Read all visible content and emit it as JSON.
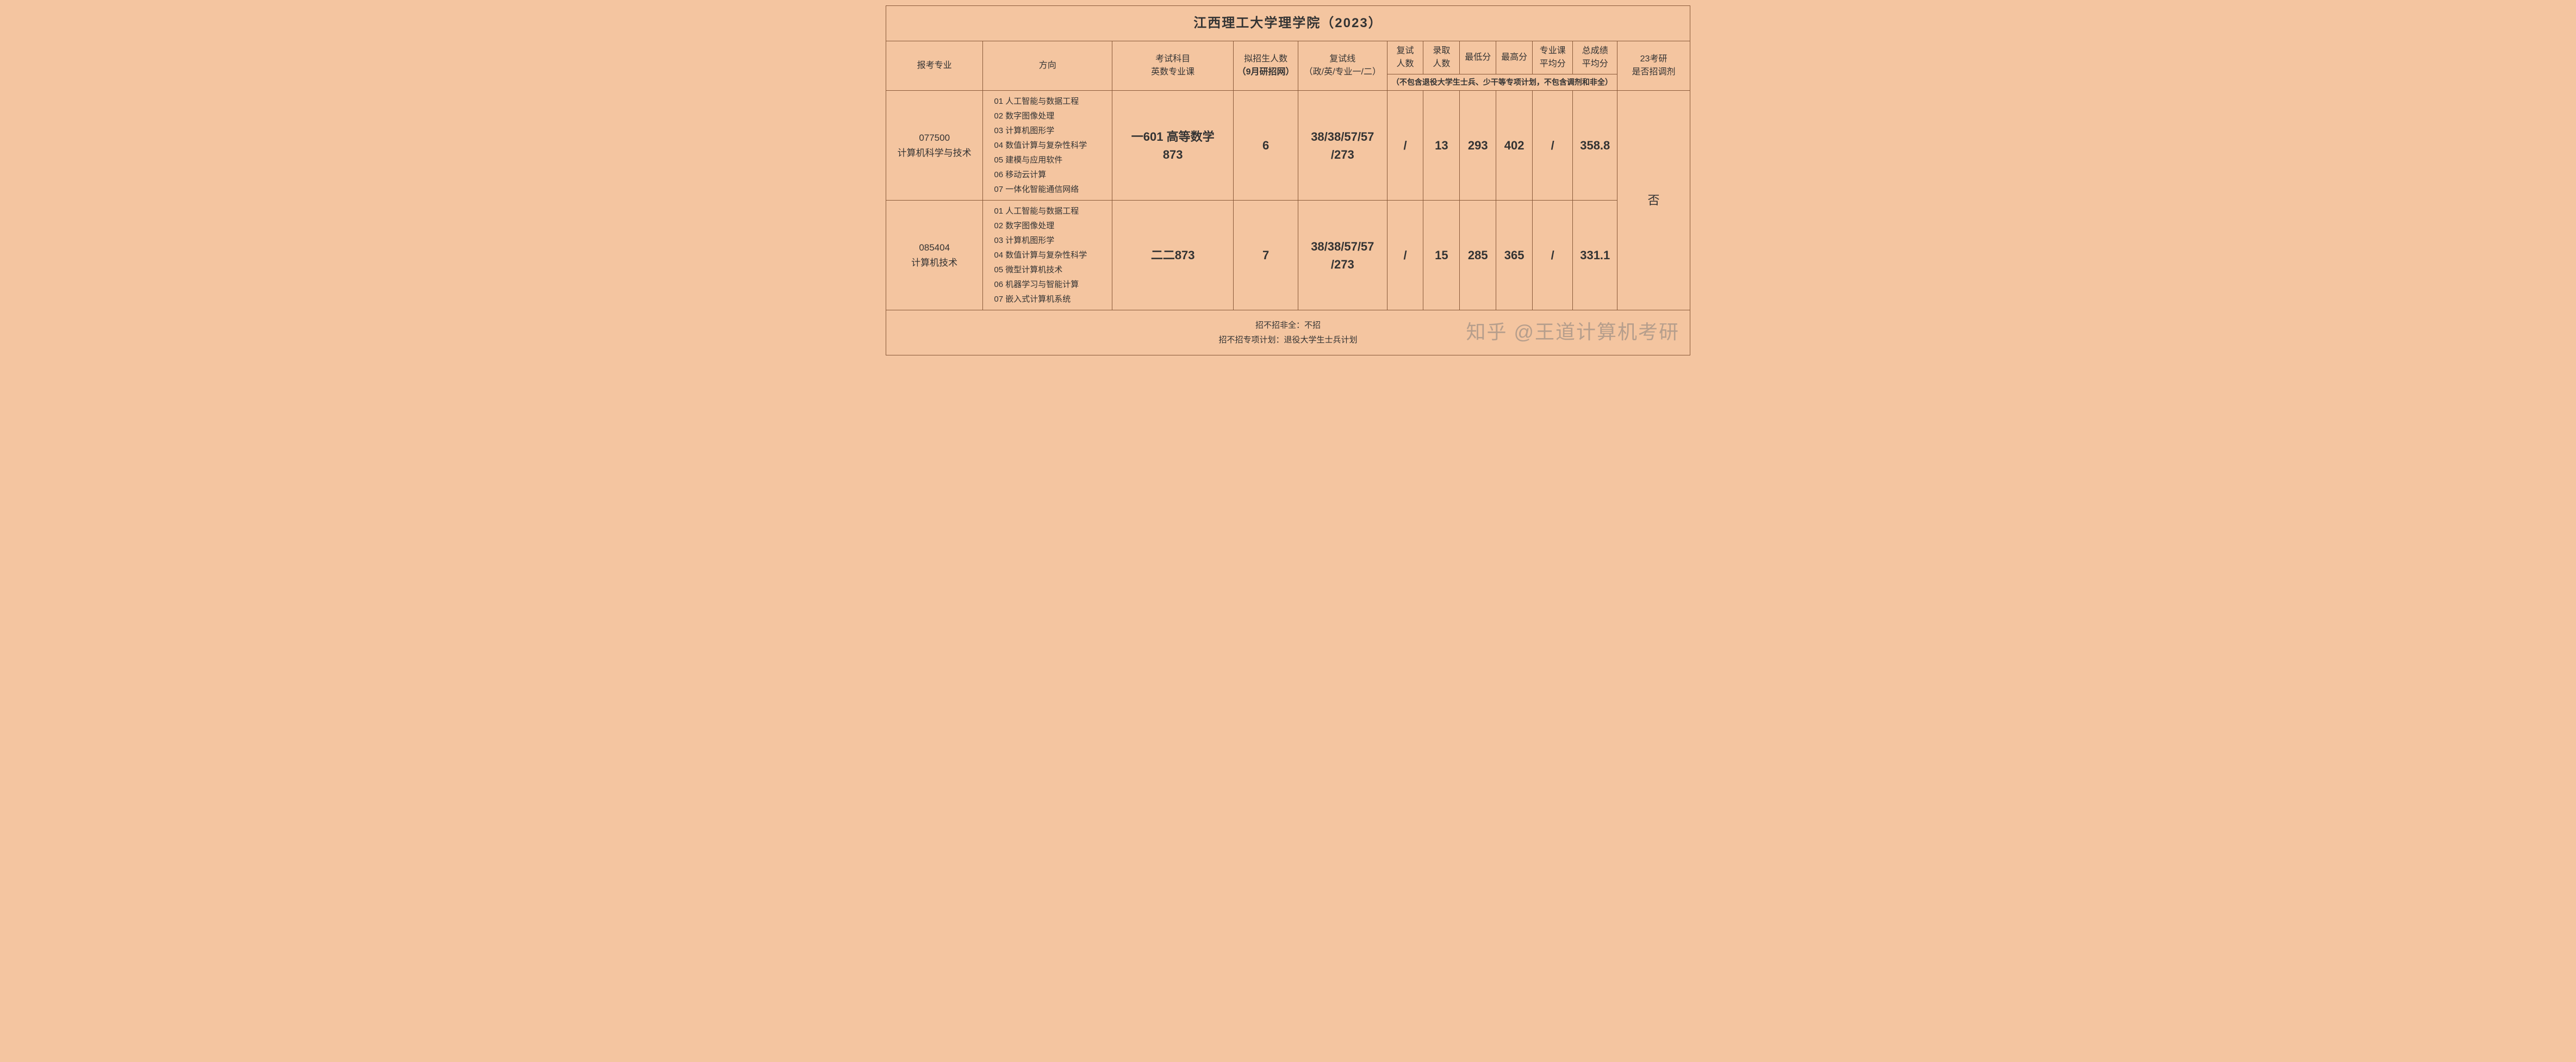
{
  "title": "江西理工大学理学院（2023）",
  "headers": {
    "major": "报考专业",
    "direction": "方向",
    "exam_subject_line1": "考试科目",
    "exam_subject_line2": "英数专业课",
    "enroll_plan_line1": "拟招生人数",
    "enroll_plan_line2": "（9月研招网）",
    "retest_line_line1": "复试线",
    "retest_line_line2": "（政/英/专业一/二）",
    "retest_count_line1": "复试",
    "retest_count_line2": "人数",
    "admit_count_line1": "录取",
    "admit_count_line2": "人数",
    "min_score": "最低分",
    "max_score": "最高分",
    "pro_avg_line1": "专业课",
    "pro_avg_line2": "平均分",
    "total_avg_line1": "总成绩",
    "total_avg_line2": "平均分",
    "adjust_line1": "23考研",
    "adjust_line2": "是否招调剂",
    "subheader_note": "（不包含退役大学生士兵、少干等专项计划，不包含调剂和非全）"
  },
  "rows": [
    {
      "major_code": "077500",
      "major_name": "计算机科学与技术",
      "directions": [
        "01 人工智能与数据工程",
        "02 数字图像处理",
        "03 计算机图形学",
        "04 数值计算与复杂性科学",
        "05 建模与应用软件",
        "06 移动云计算",
        "07 一体化智能通信网络"
      ],
      "exam_subject_line1": "一601 高等数学",
      "exam_subject_line2": "873",
      "enroll_plan": "6",
      "retest_line_line1": "38/38/57/57",
      "retest_line_line2": "/273",
      "retest_count": "/",
      "admit_count": "13",
      "min_score": "293",
      "max_score": "402",
      "pro_avg": "/",
      "total_avg": "358.8"
    },
    {
      "major_code": "085404",
      "major_name": "计算机技术",
      "directions": [
        "01 人工智能与数据工程",
        "02 数字图像处理",
        "03 计算机图形学",
        "04 数值计算与复杂性科学",
        "05 微型计算机技术",
        "06 机器学习与智能计算",
        "07 嵌入式计算机系统"
      ],
      "exam_subject_line1": "二二873",
      "exam_subject_line2": "",
      "enroll_plan": "7",
      "retest_line_line1": "38/38/57/57",
      "retest_line_line2": "/273",
      "retest_count": "/",
      "admit_count": "15",
      "min_score": "285",
      "max_score": "365",
      "pro_avg": "/",
      "total_avg": "331.1"
    }
  ],
  "adjust_value": "否",
  "footer": {
    "line1_label": "招不招非全：",
    "line1_value": "不招",
    "line2_label": "招不招专项计划：",
    "line2_value": "退役大学生士兵计划"
  },
  "watermark": "知乎 @王道计算机考研",
  "styling": {
    "background_color": "#f4c5a0",
    "border_color": "#8a5a3a",
    "title_fontsize": 24,
    "header_fontsize": 16,
    "data_big_fontsize": 22,
    "footer_fontsize": 15,
    "watermark_color": "rgba(120,120,120,0.5)",
    "watermark_fontsize": 36
  }
}
